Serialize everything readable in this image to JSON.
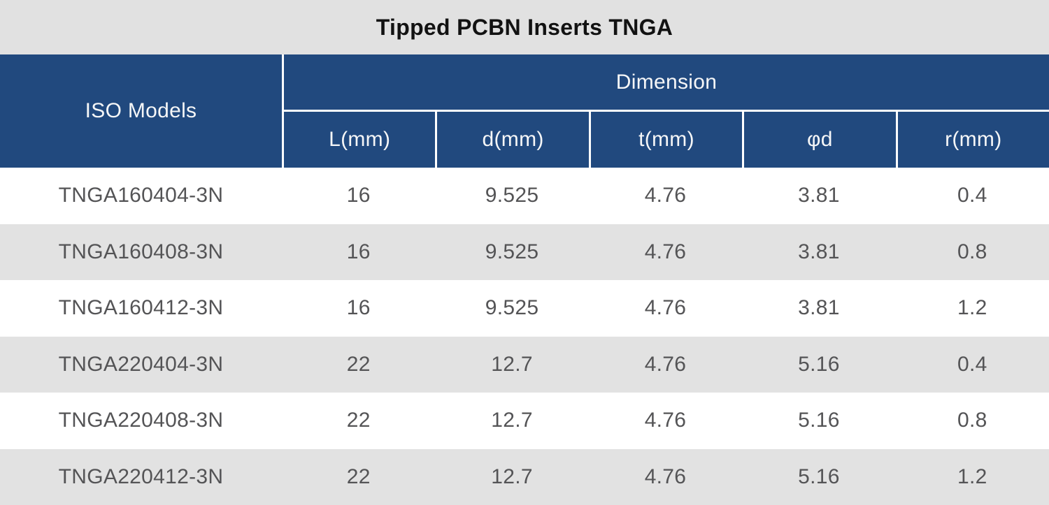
{
  "title_bar": {
    "text": "Tipped PCBN Inserts TNGA"
  },
  "chart_data": {
    "type": "table",
    "title": "Tipped PCBN Inserts TNGA",
    "column_group": "Dimension",
    "columns": [
      "ISO Models",
      "L(mm)",
      "d(mm)",
      "t(mm)",
      "φd",
      "r(mm)"
    ],
    "rows": [
      [
        "TNGA160404-3N",
        "16",
        "9.525",
        "4.76",
        "3.81",
        "0.4"
      ],
      [
        "TNGA160408-3N",
        "16",
        "9.525",
        "4.76",
        "3.81",
        "0.8"
      ],
      [
        "TNGA160412-3N",
        "16",
        "9.525",
        "4.76",
        "3.81",
        "1.2"
      ],
      [
        "TNGA220404-3N",
        "22",
        "12.7",
        "4.76",
        "5.16",
        "0.4"
      ],
      [
        "TNGA220408-3N",
        "22",
        "12.7",
        "4.76",
        "5.16",
        "0.8"
      ],
      [
        "TNGA220412-3N",
        "22",
        "12.7",
        "4.76",
        "5.16",
        "1.2"
      ]
    ],
    "layout": {
      "row_striping": "white / gray alternating",
      "header_style": "grouped header: first column spans both header rows; Dimension spans 5 sub-columns"
    }
  },
  "colors": {
    "header_blue": "#21497E",
    "title_band_gray": "#E1E1E1",
    "row_stripe_gray": "#E2E2E2",
    "divider_white": "#FFFFFF",
    "title_text": "#121212",
    "header_text": "#F5F6F7",
    "data_text": "#545456"
  }
}
